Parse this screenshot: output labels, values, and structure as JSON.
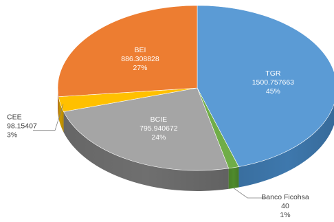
{
  "chart_data": {
    "type": "pie",
    "style": "3d",
    "title": "",
    "slices": [
      {
        "name": "TGR",
        "value": 1500.757663,
        "value_label": "1500.757663",
        "percent_label": "45%",
        "color": "#5b9bd5",
        "side_color": "#3e78ad",
        "label_position": "inside"
      },
      {
        "name": "Banco Ficohsa",
        "value": 40,
        "value_label": "40",
        "percent_label": "1%",
        "color": "#70ad47",
        "side_color": "#4f8a2c",
        "label_position": "outside-bottom"
      },
      {
        "name": "BCIE",
        "value": 795.940672,
        "value_label": "795.940672",
        "percent_label": "24%",
        "color": "#a5a5a5",
        "side_color": "#6f6f6f",
        "label_position": "inside"
      },
      {
        "name": "CEE",
        "value": 98.15407,
        "value_label": "98.15407",
        "percent_label": "3%",
        "color": "#ffc000",
        "side_color": "#c99700",
        "label_position": "outside-left"
      },
      {
        "name": "BEI",
        "value": 886.308828,
        "value_label": "886.308828",
        "percent_label": "27%",
        "color": "#ed7d31",
        "side_color": "#b85d1f",
        "label_position": "inside"
      }
    ]
  }
}
